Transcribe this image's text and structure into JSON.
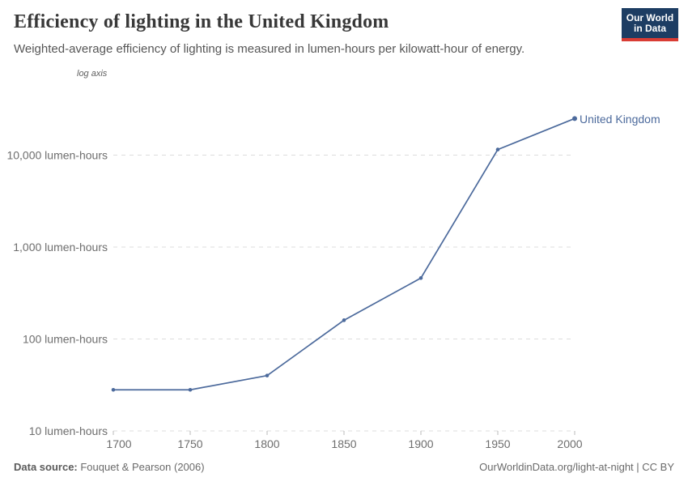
{
  "header": {
    "title": "Efficiency of lighting in the United Kingdom",
    "subtitle": "Weighted-average efficiency of lighting is measured in lumen-hours per kilowatt-hour of energy.",
    "logo": {
      "line1": "Our World",
      "line2": "in Data",
      "bg_color": "#1d3d63",
      "bar_color": "#d93c34",
      "text_color": "#ffffff"
    }
  },
  "chart": {
    "axis_note": "log axis",
    "series_label": "United Kingdom",
    "colors": {
      "line": "#4c6a9c",
      "series_label": "#4c6a9c",
      "grid": "#dddddd",
      "axis_text": "#6e6e6e",
      "tick_mark": "#bbbbbb"
    }
  },
  "chart_data": {
    "type": "line",
    "title": "Efficiency of lighting in the United Kingdom",
    "subtitle": "Weighted-average efficiency of lighting is measured in lumen-hours per kilowatt-hour of energy.",
    "xlabel": "",
    "ylabel": "lumen-hours per kilowatt-hour",
    "yscale": "log",
    "grid": "horizontal-dashed",
    "legend_position": "end-of-line-label",
    "x": [
      1700,
      1750,
      1800,
      1850,
      1900,
      1950,
      2000
    ],
    "series": [
      {
        "name": "United Kingdom",
        "values": [
          28,
          28,
          40,
          160,
          460,
          11500,
          25000
        ]
      }
    ],
    "xticks": [
      1700,
      1750,
      1800,
      1850,
      1900,
      1950,
      2000
    ],
    "yticks": [
      {
        "value": 10,
        "label": "10 lumen-hours"
      },
      {
        "value": 100,
        "label": "100 lumen-hours"
      },
      {
        "value": 1000,
        "label": "1,000 lumen-hours"
      },
      {
        "value": 10000,
        "label": "10,000 lumen-hours"
      }
    ],
    "xlim": [
      1700,
      2000
    ],
    "ylim": [
      10,
      31000
    ]
  },
  "footer": {
    "source_label": "Data source:",
    "source_value": " Fouquet & Pearson (2006)",
    "right_text": "OurWorldinData.org/light-at-night | CC BY"
  }
}
